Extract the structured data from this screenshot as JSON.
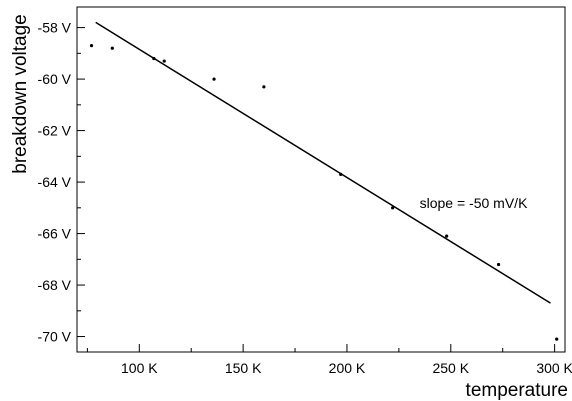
{
  "chart_data": {
    "type": "scatter",
    "title": "",
    "xlabel": "temperature",
    "ylabel": "breakdown voltage",
    "xlim": [
      70,
      305
    ],
    "ylim": [
      -70.6,
      -57.2
    ],
    "grid": false,
    "x_ticks": [
      100,
      150,
      200,
      250,
      300
    ],
    "x_tick_labels": [
      "100 K",
      "150 K",
      "200 K",
      "250 K",
      "300 K"
    ],
    "y_ticks": [
      -58,
      -60,
      -62,
      -64,
      -66,
      -68,
      -70
    ],
    "y_tick_labels": [
      "-58 V",
      "-60 V",
      "-62 V",
      "-64 V",
      "-66 V",
      "-68 V",
      "-70 V"
    ],
    "series": [
      {
        "type": "scatter",
        "points": [
          {
            "x": 77,
            "y": -58.7
          },
          {
            "x": 87,
            "y": -58.8
          },
          {
            "x": 107,
            "y": -59.2
          },
          {
            "x": 112,
            "y": -59.3
          },
          {
            "x": 136,
            "y": -60.0
          },
          {
            "x": 160,
            "y": -60.3
          },
          {
            "x": 197,
            "y": -63.7
          },
          {
            "x": 222,
            "y": -65.0
          },
          {
            "x": 248,
            "y": -66.1
          },
          {
            "x": 273,
            "y": -67.2
          },
          {
            "x": 301,
            "y": -70.1
          }
        ]
      },
      {
        "type": "line",
        "points": [
          {
            "x": 79,
            "y": -57.8
          },
          {
            "x": 298,
            "y": -68.7
          }
        ]
      }
    ],
    "annotations": [
      {
        "text": "slope = -50 mV/K",
        "x": 235,
        "y": -65.0
      }
    ]
  }
}
